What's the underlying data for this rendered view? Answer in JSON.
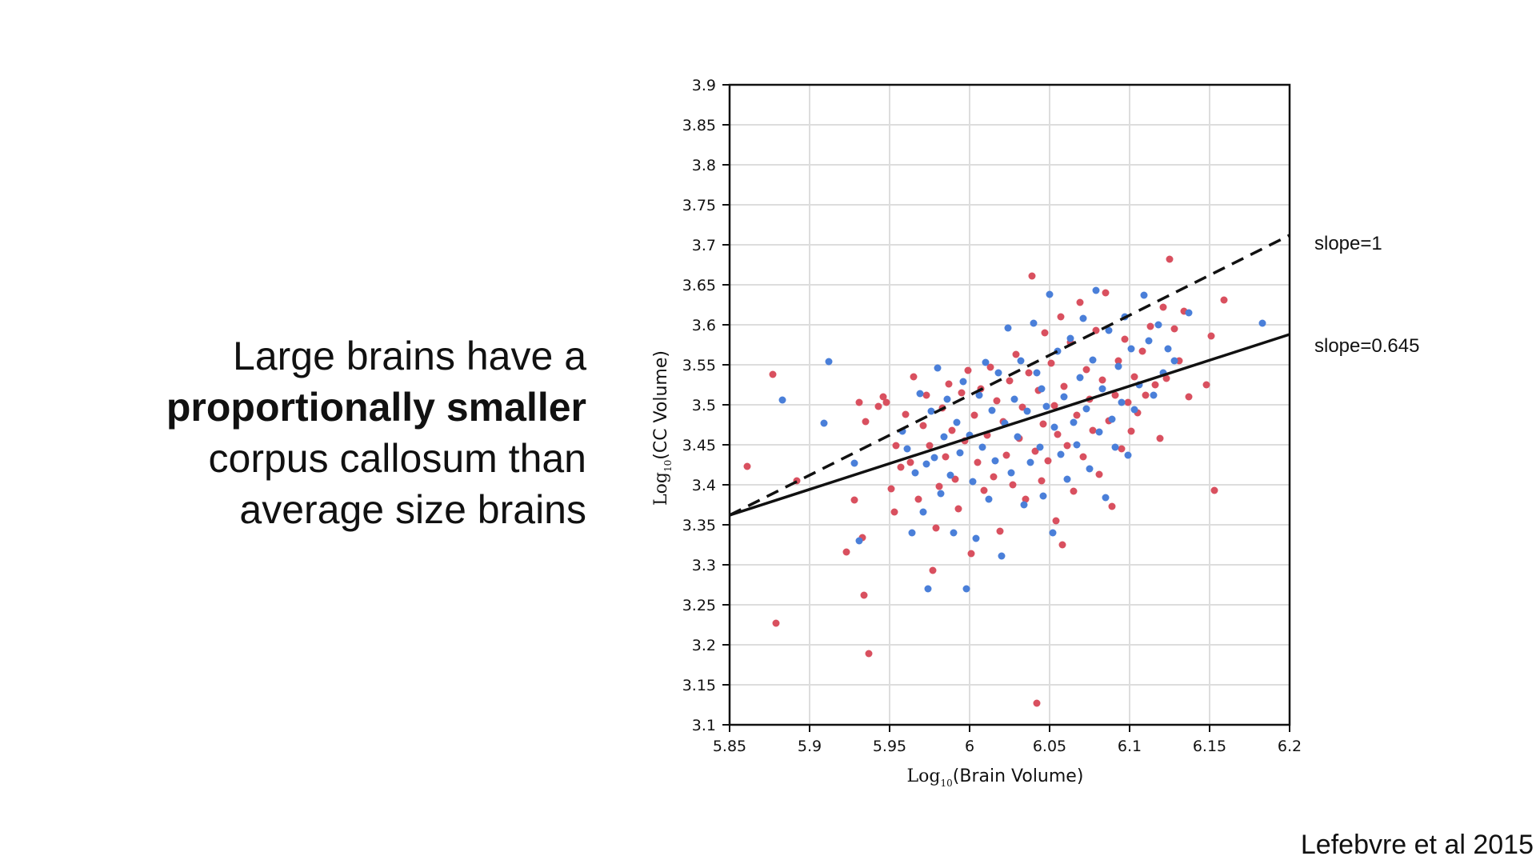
{
  "slide": {
    "text_line1": "Large brains have a",
    "text_line2": "proportionally smaller",
    "text_line3": "corpus callosum than",
    "text_line4": "average size brains",
    "citation": "Lefebvre et al 2015"
  },
  "chart_data": {
    "type": "scatter",
    "xlabel": {
      "prefix": "Log",
      "sub": "10",
      "suffix": "(Brain Volume)"
    },
    "ylabel": {
      "prefix": "Log",
      "sub": "10",
      "suffix": "(CC Volume)"
    },
    "xlim": [
      5.85,
      6.2
    ],
    "ylim": [
      3.1,
      3.9
    ],
    "xticks": [
      "5.85",
      "5.9",
      "5.95",
      "6",
      "6.05",
      "6.1",
      "6.15",
      "6.2"
    ],
    "yticks": [
      "3.1",
      "3.15",
      "3.2",
      "3.25",
      "3.3",
      "3.35",
      "3.4",
      "3.45",
      "3.5",
      "3.55",
      "3.6",
      "3.65",
      "3.7",
      "3.75",
      "3.8",
      "3.85",
      "3.9"
    ],
    "grid": true,
    "colors": {
      "red": "#d9505f",
      "blue": "#4a7fd9",
      "axis": "#111111",
      "grid": "#dddddd"
    },
    "lines": [
      {
        "label": "slope=1",
        "style": "dashed",
        "x": [
          5.85,
          6.2
        ],
        "y": [
          3.362,
          3.712
        ]
      },
      {
        "label": "slope=0.645",
        "style": "solid",
        "x": [
          5.85,
          6.2
        ],
        "y": [
          3.362,
          3.588
        ]
      }
    ],
    "series": [
      {
        "color": "#d9505f",
        "points": [
          [
            5.861,
            3.423
          ],
          [
            5.877,
            3.538
          ],
          [
            5.879,
            3.227
          ],
          [
            5.892,
            3.405
          ],
          [
            5.923,
            3.316
          ],
          [
            5.928,
            3.381
          ],
          [
            5.931,
            3.503
          ],
          [
            5.933,
            3.334
          ],
          [
            5.934,
            3.262
          ],
          [
            5.935,
            3.479
          ],
          [
            5.937,
            3.189
          ],
          [
            5.943,
            3.498
          ],
          [
            5.946,
            3.51
          ],
          [
            5.948,
            3.503
          ],
          [
            5.951,
            3.395
          ],
          [
            5.953,
            3.366
          ],
          [
            5.954,
            3.449
          ],
          [
            5.957,
            3.422
          ],
          [
            5.96,
            3.488
          ],
          [
            5.963,
            3.428
          ],
          [
            5.965,
            3.535
          ],
          [
            5.968,
            3.382
          ],
          [
            5.971,
            3.474
          ],
          [
            5.973,
            3.512
          ],
          [
            5.975,
            3.449
          ],
          [
            5.977,
            3.293
          ],
          [
            5.979,
            3.346
          ],
          [
            5.981,
            3.398
          ],
          [
            5.983,
            3.496
          ],
          [
            5.985,
            3.435
          ],
          [
            5.987,
            3.526
          ],
          [
            5.989,
            3.468
          ],
          [
            5.991,
            3.407
          ],
          [
            5.993,
            3.37
          ],
          [
            5.995,
            3.515
          ],
          [
            5.997,
            3.455
          ],
          [
            5.999,
            3.543
          ],
          [
            6.001,
            3.314
          ],
          [
            6.003,
            3.487
          ],
          [
            6.005,
            3.428
          ],
          [
            6.007,
            3.52
          ],
          [
            6.009,
            3.393
          ],
          [
            6.011,
            3.462
          ],
          [
            6.013,
            3.547
          ],
          [
            6.015,
            3.41
          ],
          [
            6.017,
            3.505
          ],
          [
            6.019,
            3.342
          ],
          [
            6.021,
            3.479
          ],
          [
            6.023,
            3.437
          ],
          [
            6.025,
            3.53
          ],
          [
            6.027,
            3.4
          ],
          [
            6.029,
            3.563
          ],
          [
            6.031,
            3.458
          ],
          [
            6.033,
            3.497
          ],
          [
            6.035,
            3.382
          ],
          [
            6.037,
            3.54
          ],
          [
            6.039,
            3.661
          ],
          [
            6.041,
            3.442
          ],
          [
            6.042,
            3.127
          ],
          [
            6.043,
            3.518
          ],
          [
            6.045,
            3.405
          ],
          [
            6.046,
            3.476
          ],
          [
            6.047,
            3.59
          ],
          [
            6.049,
            3.43
          ],
          [
            6.051,
            3.552
          ],
          [
            6.053,
            3.499
          ],
          [
            6.054,
            3.355
          ],
          [
            6.055,
            3.463
          ],
          [
            6.057,
            3.61
          ],
          [
            6.058,
            3.325
          ],
          [
            6.059,
            3.523
          ],
          [
            6.061,
            3.449
          ],
          [
            6.063,
            3.578
          ],
          [
            6.065,
            3.392
          ],
          [
            6.067,
            3.487
          ],
          [
            6.069,
            3.628
          ],
          [
            6.071,
            3.435
          ],
          [
            6.073,
            3.544
          ],
          [
            6.075,
            3.507
          ],
          [
            6.077,
            3.468
          ],
          [
            6.079,
            3.593
          ],
          [
            6.081,
            3.413
          ],
          [
            6.083,
            3.531
          ],
          [
            6.085,
            3.64
          ],
          [
            6.087,
            3.48
          ],
          [
            6.089,
            3.373
          ],
          [
            6.091,
            3.512
          ],
          [
            6.093,
            3.555
          ],
          [
            6.095,
            3.445
          ],
          [
            6.097,
            3.582
          ],
          [
            6.099,
            3.503
          ],
          [
            6.101,
            3.467
          ],
          [
            6.103,
            3.535
          ],
          [
            6.105,
            3.49
          ],
          [
            6.108,
            3.567
          ],
          [
            6.11,
            3.512
          ],
          [
            6.113,
            3.598
          ],
          [
            6.116,
            3.525
          ],
          [
            6.119,
            3.458
          ],
          [
            6.121,
            3.622
          ],
          [
            6.123,
            3.533
          ],
          [
            6.125,
            3.682
          ],
          [
            6.128,
            3.595
          ],
          [
            6.131,
            3.555
          ],
          [
            6.134,
            3.617
          ],
          [
            6.137,
            3.51
          ],
          [
            6.148,
            3.525
          ],
          [
            6.151,
            3.586
          ],
          [
            6.153,
            3.393
          ],
          [
            6.159,
            3.631
          ]
        ]
      },
      {
        "color": "#4a7fd9",
        "points": [
          [
            5.883,
            3.506
          ],
          [
            5.909,
            3.477
          ],
          [
            5.912,
            3.554
          ],
          [
            5.928,
            3.427
          ],
          [
            5.931,
            3.33
          ],
          [
            5.958,
            3.467
          ],
          [
            5.961,
            3.445
          ],
          [
            5.964,
            3.34
          ],
          [
            5.966,
            3.415
          ],
          [
            5.969,
            3.514
          ],
          [
            5.971,
            3.366
          ],
          [
            5.973,
            3.426
          ],
          [
            5.974,
            3.27
          ],
          [
            5.976,
            3.492
          ],
          [
            5.978,
            3.434
          ],
          [
            5.98,
            3.546
          ],
          [
            5.982,
            3.389
          ],
          [
            5.984,
            3.46
          ],
          [
            5.986,
            3.507
          ],
          [
            5.988,
            3.412
          ],
          [
            5.99,
            3.34
          ],
          [
            5.992,
            3.478
          ],
          [
            5.994,
            3.44
          ],
          [
            5.996,
            3.529
          ],
          [
            5.998,
            3.27
          ],
          [
            6.0,
            3.462
          ],
          [
            6.002,
            3.404
          ],
          [
            6.004,
            3.333
          ],
          [
            6.006,
            3.512
          ],
          [
            6.008,
            3.447
          ],
          [
            6.01,
            3.553
          ],
          [
            6.012,
            3.382
          ],
          [
            6.014,
            3.493
          ],
          [
            6.016,
            3.43
          ],
          [
            6.018,
            3.54
          ],
          [
            6.02,
            3.311
          ],
          [
            6.022,
            3.477
          ],
          [
            6.024,
            3.596
          ],
          [
            6.026,
            3.415
          ],
          [
            6.028,
            3.507
          ],
          [
            6.03,
            3.46
          ],
          [
            6.032,
            3.555
          ],
          [
            6.034,
            3.375
          ],
          [
            6.036,
            3.492
          ],
          [
            6.038,
            3.428
          ],
          [
            6.04,
            3.602
          ],
          [
            6.042,
            3.54
          ],
          [
            6.044,
            3.447
          ],
          [
            6.045,
            3.52
          ],
          [
            6.046,
            3.386
          ],
          [
            6.048,
            3.498
          ],
          [
            6.05,
            3.638
          ],
          [
            6.052,
            3.34
          ],
          [
            6.053,
            3.472
          ],
          [
            6.055,
            3.567
          ],
          [
            6.057,
            3.438
          ],
          [
            6.059,
            3.51
          ],
          [
            6.061,
            3.407
          ],
          [
            6.063,
            3.583
          ],
          [
            6.065,
            3.478
          ],
          [
            6.067,
            3.45
          ],
          [
            6.069,
            3.534
          ],
          [
            6.071,
            3.608
          ],
          [
            6.073,
            3.495
          ],
          [
            6.075,
            3.42
          ],
          [
            6.077,
            3.556
          ],
          [
            6.079,
            3.643
          ],
          [
            6.081,
            3.466
          ],
          [
            6.083,
            3.52
          ],
          [
            6.085,
            3.384
          ],
          [
            6.087,
            3.593
          ],
          [
            6.089,
            3.482
          ],
          [
            6.091,
            3.447
          ],
          [
            6.093,
            3.548
          ],
          [
            6.095,
            3.503
          ],
          [
            6.097,
            3.61
          ],
          [
            6.099,
            3.437
          ],
          [
            6.101,
            3.57
          ],
          [
            6.103,
            3.494
          ],
          [
            6.106,
            3.525
          ],
          [
            6.109,
            3.637
          ],
          [
            6.112,
            3.58
          ],
          [
            6.115,
            3.512
          ],
          [
            6.118,
            3.6
          ],
          [
            6.121,
            3.54
          ],
          [
            6.124,
            3.57
          ],
          [
            6.128,
            3.555
          ],
          [
            6.137,
            3.615
          ],
          [
            6.183,
            3.602
          ]
        ]
      }
    ]
  }
}
